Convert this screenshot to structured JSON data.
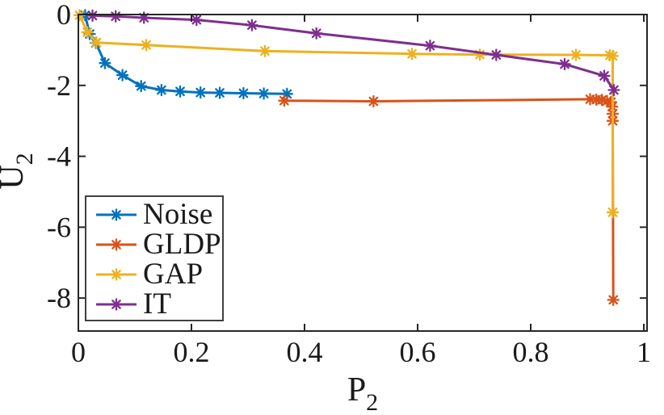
{
  "figure": {
    "background": "#ffffff",
    "text_color": "#1a1a1a"
  },
  "chart_data": {
    "type": "line",
    "title": "",
    "xlabel": {
      "main": "P",
      "sub": "2"
    },
    "ylabel": {
      "main": "U",
      "sub": "2"
    },
    "xlim": [
      0,
      1.0057
    ],
    "ylim": [
      -8.93,
      0
    ],
    "x_ticks": [
      0,
      0.2,
      0.4,
      0.6,
      0.8,
      1
    ],
    "x_tick_labels": [
      "0",
      "0.2",
      "0.4",
      "0.6",
      "0.8",
      "1"
    ],
    "y_ticks": [
      0,
      -2,
      -4,
      -6,
      -8
    ],
    "y_tick_labels": [
      "0",
      "-2",
      "-4",
      "-6",
      "-8"
    ],
    "grid": false,
    "box": true,
    "tick_direction": "in",
    "axis_color": "#262626",
    "legend": {
      "position": "bottom-left",
      "border_color": "#404040",
      "background": "#ffffff"
    },
    "series": [
      {
        "name": "Noise",
        "color": "#0072BD",
        "marker": "asterisk",
        "points": [
          [
            0.012,
            -0.02
          ],
          [
            0.02,
            -0.55
          ],
          [
            0.031,
            -0.8
          ],
          [
            0.047,
            -1.37
          ],
          [
            0.078,
            -1.71
          ],
          [
            0.111,
            -2.02
          ],
          [
            0.147,
            -2.13
          ],
          [
            0.18,
            -2.17
          ],
          [
            0.216,
            -2.2
          ],
          [
            0.25,
            -2.21
          ],
          [
            0.292,
            -2.22
          ],
          [
            0.328,
            -2.23
          ],
          [
            0.369,
            -2.24
          ]
        ]
      },
      {
        "name": "GLDP",
        "color": "#D95319",
        "marker": "asterisk",
        "points": [
          [
            0.364,
            -2.43
          ],
          [
            0.522,
            -2.45
          ],
          [
            0.905,
            -2.39
          ],
          [
            0.916,
            -2.4
          ],
          [
            0.926,
            -2.41
          ],
          [
            0.935,
            -2.44
          ],
          [
            0.942,
            -2.47
          ],
          [
            0.944,
            -2.6
          ],
          [
            0.945,
            -2.8
          ],
          [
            0.945,
            -3.0
          ],
          [
            0.946,
            -8.05
          ]
        ]
      },
      {
        "name": "GAP",
        "color": "#EDB120",
        "marker": "asterisk",
        "points": [
          [
            0.002,
            -0.02
          ],
          [
            0.016,
            -0.5
          ],
          [
            0.032,
            -0.79
          ],
          [
            0.12,
            -0.86
          ],
          [
            0.33,
            -1.03
          ],
          [
            0.59,
            -1.11
          ],
          [
            0.71,
            -1.13
          ],
          [
            0.88,
            -1.14
          ],
          [
            0.94,
            -1.15
          ],
          [
            0.945,
            -1.17
          ],
          [
            0.945,
            -5.58
          ]
        ]
      },
      {
        "name": "IT",
        "color": "#7E2F8E",
        "marker": "asterisk",
        "points": [
          [
            0.025,
            -0.03
          ],
          [
            0.066,
            -0.05
          ],
          [
            0.116,
            -0.09
          ],
          [
            0.209,
            -0.15
          ],
          [
            0.307,
            -0.3
          ],
          [
            0.421,
            -0.53
          ],
          [
            0.622,
            -0.88
          ],
          [
            0.739,
            -1.14
          ],
          [
            0.86,
            -1.4
          ],
          [
            0.93,
            -1.73
          ],
          [
            0.947,
            -2.13
          ]
        ]
      }
    ]
  }
}
